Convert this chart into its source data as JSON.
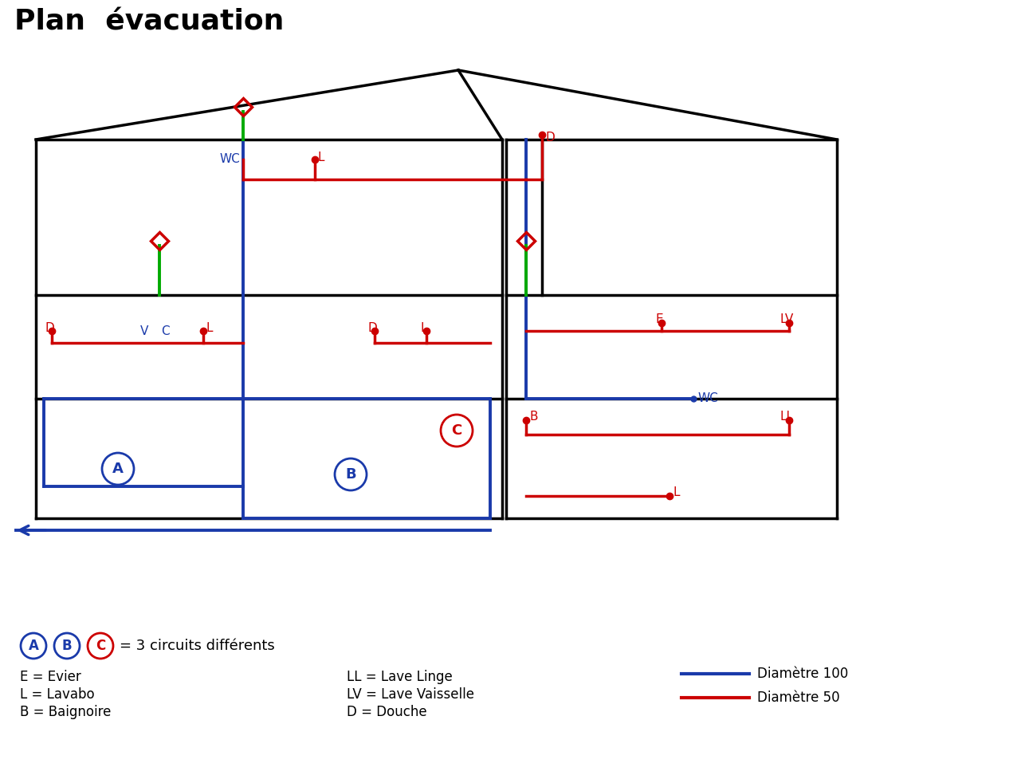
{
  "title": "Plan  évacuation",
  "title_fontsize": 26,
  "title_fontweight": "bold",
  "bg_color": "#ffffff",
  "colors": {
    "black": "#000000",
    "blue": "#1a3aaa",
    "red": "#cc0000",
    "green": "#00aa00"
  },
  "legend": {
    "abc_text": "= 3 circuits différents",
    "E": "E = Evier",
    "L": "L = Lavabo",
    "B": "B = Baignoire",
    "LL": "LL = Lave Linge",
    "LV": "LV = Lave Vaisselle",
    "D": "D = Douche",
    "diam100": "Diamètre 100",
    "diam50": "Diamètre 50"
  }
}
